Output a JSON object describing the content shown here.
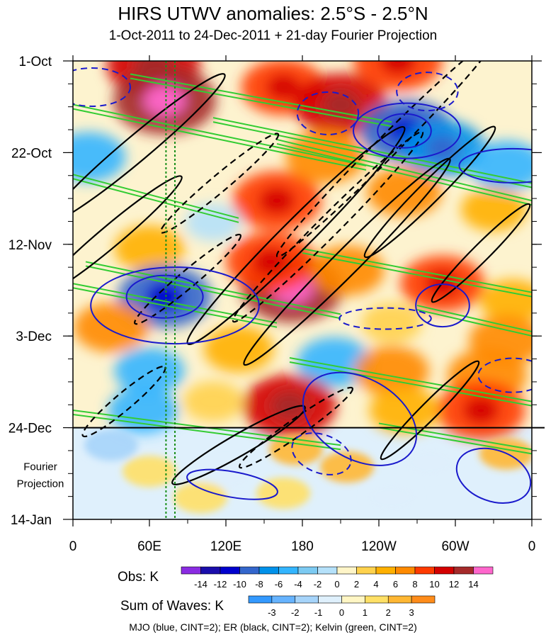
{
  "chart_data": {
    "type": "heatmap",
    "title": "HIRS UTWV anomalies: 2.5°S - 2.5°N",
    "subtitle": "1-Oct-2011 to 24-Dec-2011 + 21-day Fourier Projection",
    "x_ticks": [
      {
        "lon": 0,
        "label": "0"
      },
      {
        "lon": 60,
        "label": "60E"
      },
      {
        "lon": 120,
        "label": "120E"
      },
      {
        "lon": 180,
        "label": "180"
      },
      {
        "lon": 240,
        "label": "120W"
      },
      {
        "lon": 300,
        "label": "60W"
      },
      {
        "lon": 360,
        "label": "0"
      }
    ],
    "y_ticks": [
      {
        "day": 0,
        "label": "1-Oct"
      },
      {
        "day": 21,
        "label": "22-Oct"
      },
      {
        "day": 42,
        "label": "12-Nov"
      },
      {
        "day": 63,
        "label": "3-Dec"
      },
      {
        "day": 84,
        "label": "24-Dec"
      },
      {
        "day": 105,
        "label": "14-Jan"
      }
    ],
    "xlim": [
      0,
      360
    ],
    "ylim_days": [
      0,
      105
    ],
    "forecast_start_day": 84,
    "forecast_label": [
      "Fourier",
      "Projection"
    ],
    "reference_lines_lon": [
      73,
      80
    ],
    "obs_colorbar": {
      "label": "Obs: K",
      "levels": [
        "-14",
        "-12",
        "-10",
        "-8",
        "-6",
        "-4",
        "-2",
        "0",
        "2",
        "4",
        "6",
        "8",
        "10",
        "12",
        "14"
      ],
      "colors": [
        "#8a2be2",
        "#1a0dab",
        "#0000cd",
        "#3366cc",
        "#0091ea",
        "#33b5ff",
        "#7ccaf2",
        "#b5e1fa",
        "#fff5c8",
        "#ffd24d",
        "#ffb000",
        "#ff8a00",
        "#ff3a00",
        "#d40000",
        "#a52a2a",
        "#ff66cc"
      ]
    },
    "waves_colorbar": {
      "label": "Sum of Waves: K",
      "levels": [
        "-3",
        "-2",
        "-1",
        "0",
        "1",
        "2",
        "3"
      ],
      "colors": [
        "#3399ff",
        "#66b3ff",
        "#a6d4fa",
        "#dff0fc",
        "#fff6c4",
        "#ffe066",
        "#ffb733",
        "#ff8c1a"
      ]
    },
    "footer": "MJO (blue, CINT=2); ER (black, CINT=2); Kelvin (green, CINT=2)",
    "anomaly_blobs": [
      {
        "lon": 63,
        "day": 1,
        "value": 10
      },
      {
        "lon": 72,
        "day": 9,
        "value": 12
      },
      {
        "lon": 165,
        "day": 6,
        "value": 8
      },
      {
        "lon": 210,
        "day": 10,
        "value": 10
      },
      {
        "lon": 255,
        "day": 0,
        "value": 9
      },
      {
        "lon": 262,
        "day": 16,
        "value": -10
      },
      {
        "lon": 290,
        "day": 20,
        "value": -8
      },
      {
        "lon": 340,
        "day": 24,
        "value": -6
      },
      {
        "lon": 12,
        "day": 22,
        "value": -6
      },
      {
        "lon": 160,
        "day": 32,
        "value": 9
      },
      {
        "lon": 198,
        "day": 22,
        "value": 7
      },
      {
        "lon": 260,
        "day": 30,
        "value": 6
      },
      {
        "lon": 330,
        "day": 34,
        "value": 4
      },
      {
        "lon": 60,
        "day": 43,
        "value": 5
      },
      {
        "lon": 110,
        "day": 37,
        "value": -2
      },
      {
        "lon": 172,
        "day": 52,
        "value": 12
      },
      {
        "lon": 155,
        "day": 46,
        "value": 9
      },
      {
        "lon": 215,
        "day": 48,
        "value": 6
      },
      {
        "lon": 72,
        "day": 54,
        "value": -10
      },
      {
        "lon": 30,
        "day": 61,
        "value": 6
      },
      {
        "lon": 290,
        "day": 51,
        "value": 8
      },
      {
        "lon": 345,
        "day": 55,
        "value": 4
      },
      {
        "lon": 250,
        "day": 60,
        "value": 3
      },
      {
        "lon": 205,
        "day": 69,
        "value": -6
      },
      {
        "lon": 60,
        "day": 71,
        "value": -5
      },
      {
        "lon": 130,
        "day": 66,
        "value": 5
      },
      {
        "lon": 250,
        "day": 71,
        "value": 6
      },
      {
        "lon": 325,
        "day": 72,
        "value": 7
      },
      {
        "lon": 170,
        "day": 79,
        "value": 10
      },
      {
        "lon": 55,
        "day": 80,
        "value": -5
      },
      {
        "lon": 320,
        "day": 80,
        "value": 9
      },
      {
        "lon": 260,
        "day": 80,
        "value": 5
      },
      {
        "lon": 340,
        "day": 64,
        "value": 6
      },
      {
        "lon": 110,
        "day": 78,
        "value": 3
      }
    ],
    "projection_blobs": [
      {
        "lon": 30,
        "day": 88,
        "value": -2
      },
      {
        "lon": 175,
        "day": 89,
        "value": 2
      },
      {
        "lon": 60,
        "day": 94,
        "value": 1
      },
      {
        "lon": 165,
        "day": 99,
        "value": 1
      },
      {
        "lon": 215,
        "day": 93,
        "value": 2
      },
      {
        "lon": 280,
        "day": 92,
        "value": -1
      },
      {
        "lon": 120,
        "day": 95,
        "value": -1
      },
      {
        "lon": 340,
        "day": 90,
        "value": 2
      },
      {
        "lon": 100,
        "day": 100,
        "value": 1
      },
      {
        "lon": 250,
        "day": 100,
        "value": -1
      }
    ],
    "mjo_contours": [
      {
        "lon": 260,
        "day": 16,
        "rx": 7,
        "ry": 8,
        "rot": 0,
        "dashed": false
      },
      {
        "lon": 262,
        "day": 16,
        "rx": 14,
        "ry": 13,
        "rot": 0,
        "dashed": false
      },
      {
        "lon": 345,
        "day": 24,
        "rx": 14,
        "ry": 8,
        "rot": 0,
        "dashed": false
      },
      {
        "lon": 72,
        "day": 54,
        "rx": 10,
        "ry": 10,
        "rot": 0,
        "dashed": false
      },
      {
        "lon": 80,
        "day": 56,
        "rx": 22,
        "ry": 18,
        "rot": 0,
        "dashed": false
      },
      {
        "lon": 200,
        "day": 12,
        "rx": 8,
        "ry": 10,
        "rot": 0,
        "dashed": true
      },
      {
        "lon": 278,
        "day": 7,
        "rx": 8,
        "ry": 9,
        "rot": 0,
        "dashed": true
      },
      {
        "lon": 290,
        "day": 56,
        "rx": 7,
        "ry": 10,
        "rot": 0,
        "dashed": false
      },
      {
        "lon": 225,
        "day": 82,
        "rx": 16,
        "ry": 19,
        "rot": 30,
        "dashed": false
      },
      {
        "lon": 330,
        "day": 95,
        "rx": 10,
        "ry": 12,
        "rot": 20,
        "dashed": false
      },
      {
        "lon": 195,
        "day": 90,
        "rx": 8,
        "ry": 9,
        "rot": 20,
        "dashed": true
      },
      {
        "lon": 15,
        "day": 6,
        "rx": 10,
        "ry": 9,
        "rot": 0,
        "dashed": true
      },
      {
        "lon": 245,
        "day": 59,
        "rx": 12,
        "ry": 5,
        "rot": 0,
        "dashed": true
      },
      {
        "lon": 345,
        "day": 72,
        "rx": 9,
        "ry": 8,
        "rot": 0,
        "dashed": true
      },
      {
        "lon": 125,
        "day": 97,
        "rx": 12,
        "ry": 6,
        "rot": 10,
        "dashed": false
      }
    ],
    "er_contours": [
      {
        "lon": 175,
        "day": 40,
        "rx": 40,
        "ry": 7,
        "rot": -45,
        "dashed": false
      },
      {
        "lon": 215,
        "day": 46,
        "rx": 38,
        "ry": 6,
        "rot": -45,
        "dashed": false
      },
      {
        "lon": 245,
        "day": 20,
        "rx": 40,
        "ry": 5,
        "rot": -45,
        "dashed": true
      },
      {
        "lon": 200,
        "day": 38,
        "rx": 35,
        "ry": 5,
        "rot": -45,
        "dashed": true
      },
      {
        "lon": 50,
        "day": 20,
        "rx": 30,
        "ry": 6,
        "rot": -40,
        "dashed": false
      },
      {
        "lon": 30,
        "day": 40,
        "rx": 24,
        "ry": 5,
        "rot": -40,
        "dashed": false
      },
      {
        "lon": 115,
        "day": 28,
        "rx": 20,
        "ry": 4,
        "rot": -40,
        "dashed": true
      },
      {
        "lon": 90,
        "day": 50,
        "rx": 18,
        "ry": 4,
        "rot": -40,
        "dashed": true
      },
      {
        "lon": 280,
        "day": 30,
        "rx": 24,
        "ry": 5,
        "rot": -45,
        "dashed": false
      },
      {
        "lon": 320,
        "day": 44,
        "rx": 18,
        "ry": 4,
        "rot": -45,
        "dashed": false
      },
      {
        "lon": 130,
        "day": 88,
        "rx": 20,
        "ry": 5,
        "rot": -30,
        "dashed": false
      },
      {
        "lon": 175,
        "day": 84,
        "rx": 18,
        "ry": 4,
        "rot": -35,
        "dashed": true
      },
      {
        "lon": 280,
        "day": 80,
        "rx": 18,
        "ry": 4,
        "rot": -45,
        "dashed": false
      },
      {
        "lon": 40,
        "day": 78,
        "rx": 14,
        "ry": 4,
        "rot": -40,
        "dashed": true
      }
    ],
    "kelvin_bands": [
      {
        "lon0": 45,
        "day0": 3,
        "lon1": 250,
        "day1": 14
      },
      {
        "lon0": 0,
        "day0": 10,
        "lon1": 230,
        "day1": 24
      },
      {
        "lon0": 110,
        "day0": 13,
        "lon1": 360,
        "day1": 28
      },
      {
        "lon0": 0,
        "day0": 26,
        "lon1": 130,
        "day1": 36
      },
      {
        "lon0": 160,
        "day0": 18,
        "lon1": 360,
        "day1": 32
      },
      {
        "lon0": 10,
        "day0": 46,
        "lon1": 210,
        "day1": 58
      },
      {
        "lon0": 180,
        "day0": 43,
        "lon1": 360,
        "day1": 53
      },
      {
        "lon0": 0,
        "day0": 51,
        "lon1": 160,
        "day1": 60
      },
      {
        "lon0": 270,
        "day0": 56,
        "lon1": 360,
        "day1": 62
      },
      {
        "lon0": 170,
        "day0": 68,
        "lon1": 360,
        "day1": 78
      },
      {
        "lon0": 0,
        "day0": 80,
        "lon1": 210,
        "day1": 88
      },
      {
        "lon0": 240,
        "day0": 83,
        "lon1": 360,
        "day1": 89
      }
    ]
  }
}
